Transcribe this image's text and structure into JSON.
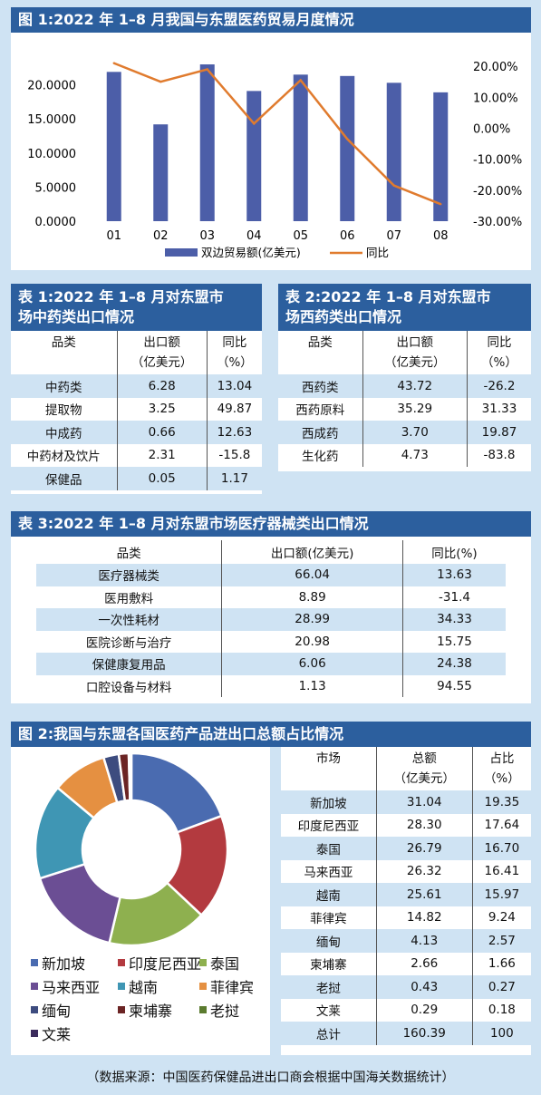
{
  "fig1": {
    "title": "图 1:2022 年 1–8 月我国与东盟医药贸易月度情况",
    "legend": [
      "双边贸易额(亿美元)",
      "同比"
    ]
  },
  "chart_data": [
    {
      "type": "bar",
      "title": "图 1:2022 年 1–8 月我国与东盟医药贸易月度情况",
      "categories": [
        "01",
        "02",
        "03",
        "04",
        "05",
        "06",
        "07",
        "08"
      ],
      "series": [
        {
          "name": "双边贸易额(亿美元)",
          "type": "bar",
          "axis": "left",
          "values": [
            21.9,
            14.2,
            23.0,
            19.1,
            21.5,
            21.3,
            20.3,
            18.9
          ]
        },
        {
          "name": "同比",
          "type": "line",
          "axis": "right",
          "values": [
            21.0,
            15.0,
            19.0,
            1.5,
            15.5,
            -3.5,
            -18.5,
            -24.5
          ]
        }
      ],
      "left_ticks": [
        "20.0000",
        "15.0000",
        "10.0000",
        "5.0000",
        "0.0000"
      ],
      "right_ticks": [
        "20.00%",
        "10.00%",
        "0.00%",
        "-10.00%",
        "-20.00%",
        "-30.00%"
      ],
      "ylim_left": [
        0,
        25
      ],
      "ylim_right": [
        -30,
        25
      ],
      "colors": {
        "bar": "#4c5ea8",
        "line": "#e07b2e"
      }
    },
    {
      "type": "pie",
      "title": "图 2:我国与东盟各国医药产品进出口总额占比情况",
      "labels": [
        "新加坡",
        "印度尼西亚",
        "泰国",
        "马来西亚",
        "越南",
        "菲律宾",
        "缅甸",
        "柬埔寨",
        "老挝",
        "文莱"
      ],
      "values": [
        19.35,
        17.64,
        16.7,
        16.41,
        15.97,
        9.24,
        2.57,
        1.66,
        0.27,
        0.18
      ],
      "colors": [
        "#4a6bb0",
        "#b33a3f",
        "#8eb04f",
        "#6b4e94",
        "#3f96b4",
        "#e59041",
        "#3d4c7f",
        "#6b2424",
        "#5b7b2f",
        "#3b2b5c"
      ]
    }
  ],
  "table1": {
    "title_line1": "表 1:2022 年 1–8 月对东盟市",
    "title_line2": "场中药类出口情况",
    "headers": [
      [
        "品类",
        ""
      ],
      [
        "出口额",
        "（亿美元）"
      ],
      [
        "同比",
        "（%）"
      ]
    ],
    "rows": [
      [
        "中药类",
        "6.28",
        "13.04"
      ],
      [
        "提取物",
        "3.25",
        "49.87"
      ],
      [
        "中成药",
        "0.66",
        "12.63"
      ],
      [
        "中药材及饮片",
        "2.31",
        "-15.8"
      ],
      [
        "保健品",
        "0.05",
        "1.17"
      ]
    ]
  },
  "table2": {
    "title_line1": "表 2:2022 年 1–8 月对东盟市",
    "title_line2": "场西药类出口情况",
    "headers": [
      [
        "品类",
        ""
      ],
      [
        "出口额",
        "（亿美元）"
      ],
      [
        "同比",
        "（%）"
      ]
    ],
    "rows": [
      [
        "西药类",
        "43.72",
        "-26.2"
      ],
      [
        "西药原料",
        "35.29",
        "31.33"
      ],
      [
        "西成药",
        "3.70",
        "19.87"
      ],
      [
        "生化药",
        "4.73",
        "-83.8"
      ]
    ]
  },
  "table3": {
    "title": "表 3:2022 年 1–8 月对东盟市场医疗器械类出口情况",
    "headers": [
      "品类",
      "出口额(亿美元)",
      "同比(%)"
    ],
    "rows": [
      [
        "医疗器械类",
        "66.04",
        "13.63"
      ],
      [
        "医用敷料",
        "8.89",
        "-31.4"
      ],
      [
        "一次性耗材",
        "28.99",
        "34.33"
      ],
      [
        "医院诊断与治疗",
        "20.98",
        "15.75"
      ],
      [
        "保健康复用品",
        "6.06",
        "24.38"
      ],
      [
        "口腔设备与材料",
        "1.13",
        "94.55"
      ]
    ]
  },
  "fig2": {
    "title": "图 2:我国与东盟各国医药产品进出口总额占比情况",
    "table_headers": [
      [
        "市场",
        ""
      ],
      [
        "总额",
        "（亿美元）"
      ],
      [
        "占比",
        "（%）"
      ]
    ],
    "rows": [
      [
        "新加坡",
        "31.04",
        "19.35"
      ],
      [
        "印度尼西亚",
        "28.30",
        "17.64"
      ],
      [
        "泰国",
        "26.79",
        "16.70"
      ],
      [
        "马来西亚",
        "26.32",
        "16.41"
      ],
      [
        "越南",
        "25.61",
        "15.97"
      ],
      [
        "菲律宾",
        "14.82",
        "9.24"
      ],
      [
        "缅甸",
        "4.13",
        "2.57"
      ],
      [
        "柬埔寨",
        "2.66",
        "1.66"
      ],
      [
        "老挝",
        "0.43",
        "0.27"
      ],
      [
        "文莱",
        "0.29",
        "0.18"
      ],
      [
        "总计",
        "160.39",
        "100"
      ]
    ]
  },
  "footer": "（数据来源：中国医药保健品进出口商会根据中国海关数据统计）"
}
